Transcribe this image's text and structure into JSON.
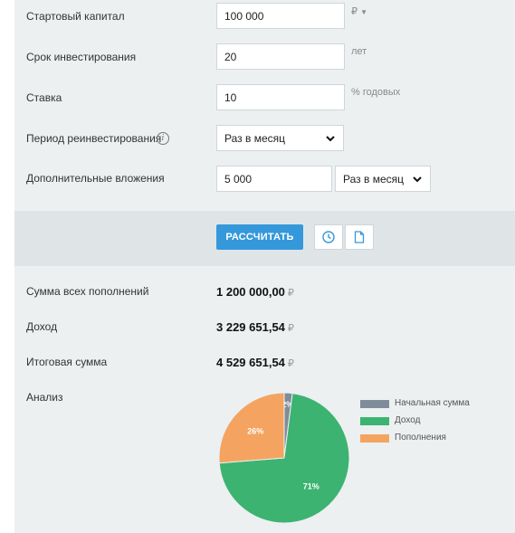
{
  "form": {
    "capital": {
      "label": "Стартовый капитал",
      "value": "100 000",
      "unit": "₽"
    },
    "term": {
      "label": "Срок инвестирования",
      "value": "20",
      "unit": "лет"
    },
    "rate": {
      "label": "Ставка",
      "value": "10",
      "unit": "% годовых"
    },
    "period": {
      "label": "Период реинвестирования",
      "value": "Раз в месяц"
    },
    "extra": {
      "label": "Дополнительные вложения",
      "value": "5 000",
      "period": "Раз в месяц"
    }
  },
  "actions": {
    "calculate_label": "РАССЧИТАТЬ"
  },
  "results": {
    "total_deposits": {
      "label": "Сумма всех пополнений",
      "value": "1 200 000,00",
      "currency": "₽"
    },
    "income": {
      "label": "Доход",
      "value": "3 229 651,54",
      "currency": "₽"
    },
    "final": {
      "label": "Итоговая сумма",
      "value": "4 529 651,54",
      "currency": "₽"
    },
    "analysis_label": "Анализ"
  },
  "chart_data": {
    "type": "pie",
    "series": [
      {
        "name": "Начальная сумма",
        "value": 2,
        "label": "2%",
        "color": "#7f8c9a"
      },
      {
        "name": "Доход",
        "value": 71,
        "label": "71%",
        "color": "#3cb371"
      },
      {
        "name": "Пополнения",
        "value": 26,
        "label": "26%",
        "color": "#f4a460"
      }
    ],
    "legend": "right"
  }
}
